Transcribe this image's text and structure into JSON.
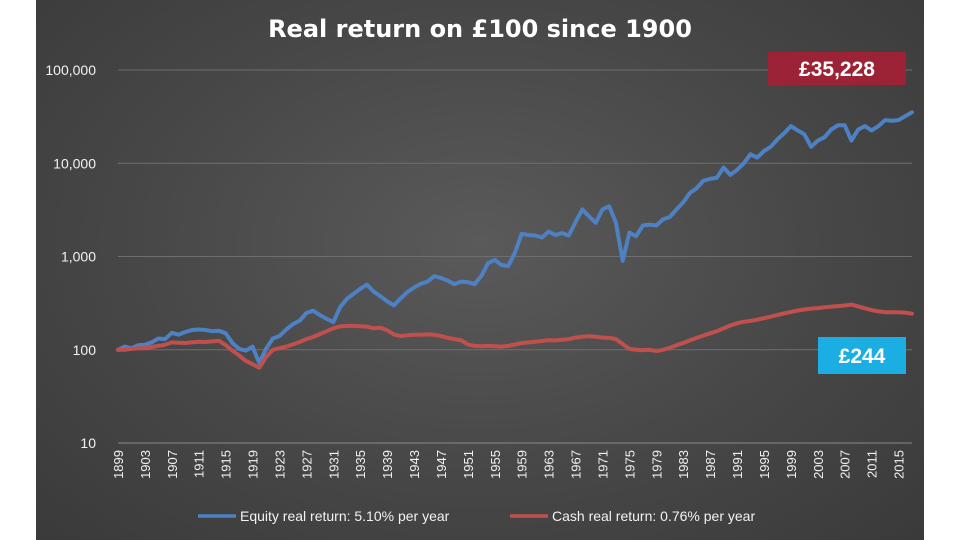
{
  "chart_data": {
    "type": "line",
    "title": "Real return on £100 since 1900",
    "y_scale": "log",
    "ylim": [
      10,
      100000
    ],
    "xlim": [
      1899,
      2017
    ],
    "y_ticks": [
      "100,000",
      "10,000",
      "1,000",
      "100",
      "10"
    ],
    "x_ticks": [
      "1899",
      "1903",
      "1907",
      "1911",
      "1915",
      "1919",
      "1923",
      "1927",
      "1931",
      "1935",
      "1939",
      "1943",
      "1947",
      "1951",
      "1955",
      "1959",
      "1963",
      "1967",
      "1971",
      "1975",
      "1979",
      "1983",
      "1987",
      "1991",
      "1995",
      "1999",
      "2003",
      "2007",
      "2011",
      "2015"
    ],
    "grid": "horizontal",
    "legend_position": "bottom",
    "series": [
      {
        "name": "Equity real return: 5.10% per year",
        "color": "#4e81c3",
        "points": [
          [
            1899,
            100
          ],
          [
            1900,
            108
          ],
          [
            1901,
            104
          ],
          [
            1902,
            112
          ],
          [
            1903,
            113
          ],
          [
            1904,
            120
          ],
          [
            1905,
            132
          ],
          [
            1906,
            130
          ],
          [
            1907,
            152
          ],
          [
            1908,
            145
          ],
          [
            1909,
            155
          ],
          [
            1910,
            163
          ],
          [
            1911,
            165
          ],
          [
            1912,
            163
          ],
          [
            1913,
            158
          ],
          [
            1914,
            160
          ],
          [
            1915,
            150
          ],
          [
            1916,
            118
          ],
          [
            1917,
            102
          ],
          [
            1918,
            98
          ],
          [
            1919,
            108
          ],
          [
            1920,
            72
          ],
          [
            1921,
            102
          ],
          [
            1922,
            132
          ],
          [
            1923,
            140
          ],
          [
            1924,
            165
          ],
          [
            1925,
            188
          ],
          [
            1926,
            205
          ],
          [
            1927,
            248
          ],
          [
            1928,
            262
          ],
          [
            1929,
            235
          ],
          [
            1930,
            215
          ],
          [
            1931,
            198
          ],
          [
            1932,
            285
          ],
          [
            1933,
            350
          ],
          [
            1934,
            398
          ],
          [
            1935,
            450
          ],
          [
            1936,
            500
          ],
          [
            1937,
            420
          ],
          [
            1938,
            375
          ],
          [
            1939,
            330
          ],
          [
            1940,
            300
          ],
          [
            1941,
            355
          ],
          [
            1942,
            415
          ],
          [
            1943,
            465
          ],
          [
            1944,
            510
          ],
          [
            1945,
            540
          ],
          [
            1946,
            615
          ],
          [
            1947,
            590
          ],
          [
            1948,
            550
          ],
          [
            1949,
            505
          ],
          [
            1950,
            540
          ],
          [
            1951,
            530
          ],
          [
            1952,
            505
          ],
          [
            1953,
            620
          ],
          [
            1954,
            850
          ],
          [
            1955,
            920
          ],
          [
            1956,
            810
          ],
          [
            1957,
            790
          ],
          [
            1958,
            1100
          ],
          [
            1959,
            1750
          ],
          [
            1960,
            1700
          ],
          [
            1961,
            1680
          ],
          [
            1962,
            1600
          ],
          [
            1963,
            1850
          ],
          [
            1964,
            1700
          ],
          [
            1965,
            1780
          ],
          [
            1966,
            1680
          ],
          [
            1967,
            2350
          ],
          [
            1968,
            3200
          ],
          [
            1969,
            2700
          ],
          [
            1970,
            2300
          ],
          [
            1971,
            3200
          ],
          [
            1972,
            3450
          ],
          [
            1973,
            2300
          ],
          [
            1974,
            900
          ],
          [
            1975,
            1800
          ],
          [
            1976,
            1650
          ],
          [
            1977,
            2150
          ],
          [
            1978,
            2200
          ],
          [
            1979,
            2150
          ],
          [
            1980,
            2500
          ],
          [
            1981,
            2650
          ],
          [
            1982,
            3200
          ],
          [
            1983,
            3800
          ],
          [
            1984,
            4800
          ],
          [
            1985,
            5400
          ],
          [
            1986,
            6500
          ],
          [
            1987,
            6800
          ],
          [
            1988,
            7000
          ],
          [
            1989,
            9000
          ],
          [
            1990,
            7500
          ],
          [
            1991,
            8500
          ],
          [
            1992,
            10000
          ],
          [
            1993,
            12500
          ],
          [
            1994,
            11500
          ],
          [
            1995,
            13500
          ],
          [
            1996,
            15000
          ],
          [
            1997,
            18000
          ],
          [
            1998,
            21000
          ],
          [
            1999,
            25000
          ],
          [
            2000,
            22500
          ],
          [
            2001,
            20500
          ],
          [
            2002,
            15000
          ],
          [
            2003,
            17500
          ],
          [
            2004,
            19000
          ],
          [
            2005,
            23000
          ],
          [
            2006,
            25500
          ],
          [
            2007,
            25500
          ],
          [
            2008,
            17500
          ],
          [
            2009,
            23000
          ],
          [
            2010,
            25000
          ],
          [
            2011,
            22500
          ],
          [
            2012,
            25000
          ],
          [
            2013,
            29000
          ],
          [
            2014,
            28500
          ],
          [
            2015,
            29000
          ],
          [
            2016,
            32000
          ],
          [
            2017,
            35228
          ]
        ]
      },
      {
        "name": "Cash real return: 0.76% per year",
        "color": "#c0504d",
        "points": [
          [
            1899,
            100
          ],
          [
            1900,
            100
          ],
          [
            1901,
            102
          ],
          [
            1902,
            104
          ],
          [
            1903,
            104
          ],
          [
            1904,
            107
          ],
          [
            1905,
            110
          ],
          [
            1906,
            113
          ],
          [
            1907,
            120
          ],
          [
            1908,
            119
          ],
          [
            1909,
            118
          ],
          [
            1910,
            120
          ],
          [
            1911,
            122
          ],
          [
            1912,
            121
          ],
          [
            1913,
            123
          ],
          [
            1914,
            125
          ],
          [
            1915,
            112
          ],
          [
            1916,
            98
          ],
          [
            1917,
            87
          ],
          [
            1918,
            76
          ],
          [
            1919,
            70
          ],
          [
            1920,
            64
          ],
          [
            1921,
            83
          ],
          [
            1922,
            100
          ],
          [
            1923,
            104
          ],
          [
            1924,
            108
          ],
          [
            1925,
            114
          ],
          [
            1926,
            121
          ],
          [
            1927,
            130
          ],
          [
            1928,
            137
          ],
          [
            1929,
            147
          ],
          [
            1930,
            158
          ],
          [
            1931,
            170
          ],
          [
            1932,
            178
          ],
          [
            1933,
            180
          ],
          [
            1934,
            180
          ],
          [
            1935,
            179
          ],
          [
            1936,
            177
          ],
          [
            1937,
            170
          ],
          [
            1938,
            172
          ],
          [
            1939,
            162
          ],
          [
            1940,
            146
          ],
          [
            1941,
            140
          ],
          [
            1942,
            143
          ],
          [
            1943,
            145
          ],
          [
            1944,
            145
          ],
          [
            1945,
            146
          ],
          [
            1946,
            145
          ],
          [
            1947,
            140
          ],
          [
            1948,
            134
          ],
          [
            1949,
            130
          ],
          [
            1950,
            126
          ],
          [
            1951,
            114
          ],
          [
            1952,
            110
          ],
          [
            1953,
            109
          ],
          [
            1954,
            110
          ],
          [
            1955,
            109
          ],
          [
            1956,
            108
          ],
          [
            1957,
            110
          ],
          [
            1958,
            114
          ],
          [
            1959,
            118
          ],
          [
            1960,
            120
          ],
          [
            1961,
            122
          ],
          [
            1962,
            124
          ],
          [
            1963,
            127
          ],
          [
            1964,
            126
          ],
          [
            1965,
            128
          ],
          [
            1966,
            130
          ],
          [
            1967,
            135
          ],
          [
            1968,
            138
          ],
          [
            1969,
            140
          ],
          [
            1970,
            138
          ],
          [
            1971,
            135
          ],
          [
            1972,
            134
          ],
          [
            1973,
            130
          ],
          [
            1974,
            115
          ],
          [
            1975,
            102
          ],
          [
            1976,
            100
          ],
          [
            1977,
            99
          ],
          [
            1978,
            100
          ],
          [
            1979,
            97
          ],
          [
            1980,
            100
          ],
          [
            1981,
            105
          ],
          [
            1982,
            112
          ],
          [
            1983,
            118
          ],
          [
            1984,
            126
          ],
          [
            1985,
            134
          ],
          [
            1986,
            142
          ],
          [
            1987,
            150
          ],
          [
            1988,
            158
          ],
          [
            1989,
            170
          ],
          [
            1990,
            182
          ],
          [
            1991,
            192
          ],
          [
            1992,
            200
          ],
          [
            1993,
            204
          ],
          [
            1994,
            210
          ],
          [
            1995,
            218
          ],
          [
            1996,
            226
          ],
          [
            1997,
            236
          ],
          [
            1998,
            246
          ],
          [
            1999,
            254
          ],
          [
            2000,
            263
          ],
          [
            2001,
            270
          ],
          [
            2002,
            276
          ],
          [
            2003,
            280
          ],
          [
            2004,
            285
          ],
          [
            2005,
            290
          ],
          [
            2006,
            294
          ],
          [
            2007,
            298
          ],
          [
            2008,
            305
          ],
          [
            2009,
            292
          ],
          [
            2010,
            278
          ],
          [
            2011,
            266
          ],
          [
            2012,
            258
          ],
          [
            2013,
            253
          ],
          [
            2014,
            252
          ],
          [
            2015,
            252
          ],
          [
            2016,
            250
          ],
          [
            2017,
            244
          ]
        ]
      }
    ],
    "annotations": [
      {
        "text": "£35,228",
        "background": "#9b2335",
        "series": 0
      },
      {
        "text": "£244",
        "background": "#1aaee2",
        "series": 1
      }
    ]
  }
}
